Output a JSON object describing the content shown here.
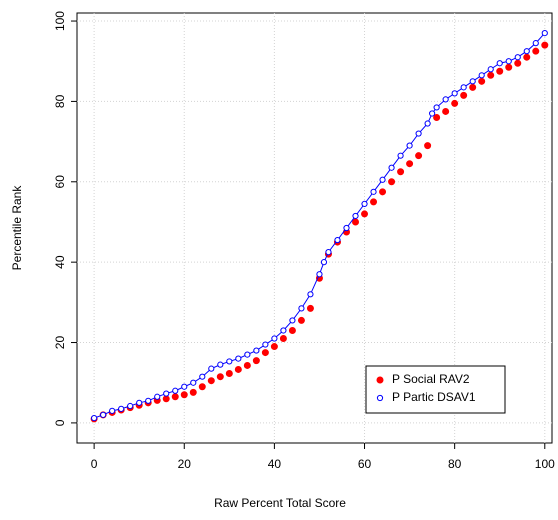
{
  "chart_data": {
    "type": "scatter",
    "xlabel": "Raw Percent Total Score",
    "ylabel": "Percentile Rank",
    "xlim": [
      -3.8,
      101.6
    ],
    "ylim": [
      -5,
      102
    ],
    "xticks": [
      0,
      20,
      40,
      60,
      80,
      100
    ],
    "yticks": [
      0,
      20,
      40,
      60,
      80,
      100
    ],
    "grid": true,
    "legend_position": "bottomright",
    "series": [
      {
        "name": "P Social RAV2",
        "color": "#ff0000",
        "marker": "filled",
        "line": false,
        "x": [
          0,
          2,
          4,
          6,
          8,
          10,
          12,
          14,
          16,
          18,
          20,
          22,
          24,
          26,
          28,
          30,
          32,
          34,
          36,
          38,
          40,
          42,
          44,
          46,
          48,
          50,
          52,
          54,
          56,
          58,
          60,
          62,
          64,
          66,
          68,
          70,
          72,
          74,
          76,
          78,
          80,
          82,
          84,
          86,
          88,
          90,
          92,
          94,
          96,
          98,
          100
        ],
        "values": [
          1,
          2,
          2.6,
          3.2,
          3.8,
          4.4,
          5,
          5.6,
          6,
          6.5,
          7,
          7.6,
          9,
          10.5,
          11.5,
          12.3,
          13.3,
          14.3,
          15.5,
          17.5,
          19,
          21,
          23,
          25.5,
          28.5,
          36,
          42,
          45,
          47.5,
          50,
          52,
          55,
          57.5,
          60,
          62.5,
          64.5,
          66.5,
          69,
          76,
          77.5,
          79.5,
          81.5,
          83.5,
          85,
          86.5,
          87.5,
          88.5,
          89.5,
          91,
          92.5,
          94
        ]
      },
      {
        "name": "P Partic DSAV1",
        "color": "#0000ff",
        "marker": "open",
        "line": true,
        "x": [
          0,
          2,
          4,
          6,
          8,
          10,
          12,
          14,
          16,
          18,
          20,
          22,
          24,
          26,
          28,
          30,
          32,
          34,
          36,
          38,
          40,
          42,
          44,
          46,
          48,
          50,
          51,
          52,
          54,
          56,
          58,
          60,
          62,
          64,
          66,
          68,
          70,
          72,
          74,
          75,
          76,
          78,
          80,
          82,
          84,
          86,
          88,
          90,
          92,
          94,
          96,
          98,
          100
        ],
        "values": [
          1.2,
          2,
          3,
          3.5,
          4.2,
          5,
          5.5,
          6.5,
          7.3,
          8,
          9,
          10,
          11.5,
          13.5,
          14.5,
          15.3,
          16,
          17,
          18,
          19.5,
          21,
          23,
          25.5,
          28.5,
          32,
          37,
          40,
          42.5,
          45.5,
          48.5,
          51.5,
          54.5,
          57.5,
          60.5,
          63.5,
          66.5,
          69,
          72,
          74.5,
          77,
          78.5,
          80.5,
          82,
          83.5,
          85,
          86.5,
          88,
          89.5,
          90,
          91,
          92.5,
          94.5,
          97
        ]
      }
    ]
  }
}
